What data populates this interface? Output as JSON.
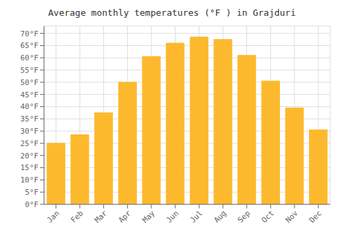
{
  "chart_data": {
    "type": "bar",
    "title": "Average monthly temperatures (°F ) in Grajduri",
    "categories": [
      "Jan",
      "Feb",
      "Mar",
      "Apr",
      "May",
      "Jun",
      "Jul",
      "Aug",
      "Sep",
      "Oct",
      "Nov",
      "Dec"
    ],
    "values": [
      25,
      28.5,
      37.5,
      50,
      60.5,
      66,
      68.5,
      67.5,
      61,
      50.5,
      39.5,
      30.5
    ],
    "color": "#FDB92E",
    "ylim": [
      0,
      73
    ],
    "yticks": [
      {
        "value": 0,
        "label": "0°F"
      },
      {
        "value": 5,
        "label": "5°F"
      },
      {
        "value": 10,
        "label": "10°F"
      },
      {
        "value": 15,
        "label": "15°F"
      },
      {
        "value": 20,
        "label": "20°F"
      },
      {
        "value": 25,
        "label": "25°F"
      },
      {
        "value": 30,
        "label": "30°F"
      },
      {
        "value": 35,
        "label": "35°F"
      },
      {
        "value": 40,
        "label": "40°F"
      },
      {
        "value": 45,
        "label": "45°F"
      },
      {
        "value": 50,
        "label": "50°F"
      },
      {
        "value": 55,
        "label": "55°F"
      },
      {
        "value": 60,
        "label": "60°F"
      },
      {
        "value": 65,
        "label": "65°F"
      },
      {
        "value": 70,
        "label": "70°F"
      }
    ],
    "grid": true
  }
}
